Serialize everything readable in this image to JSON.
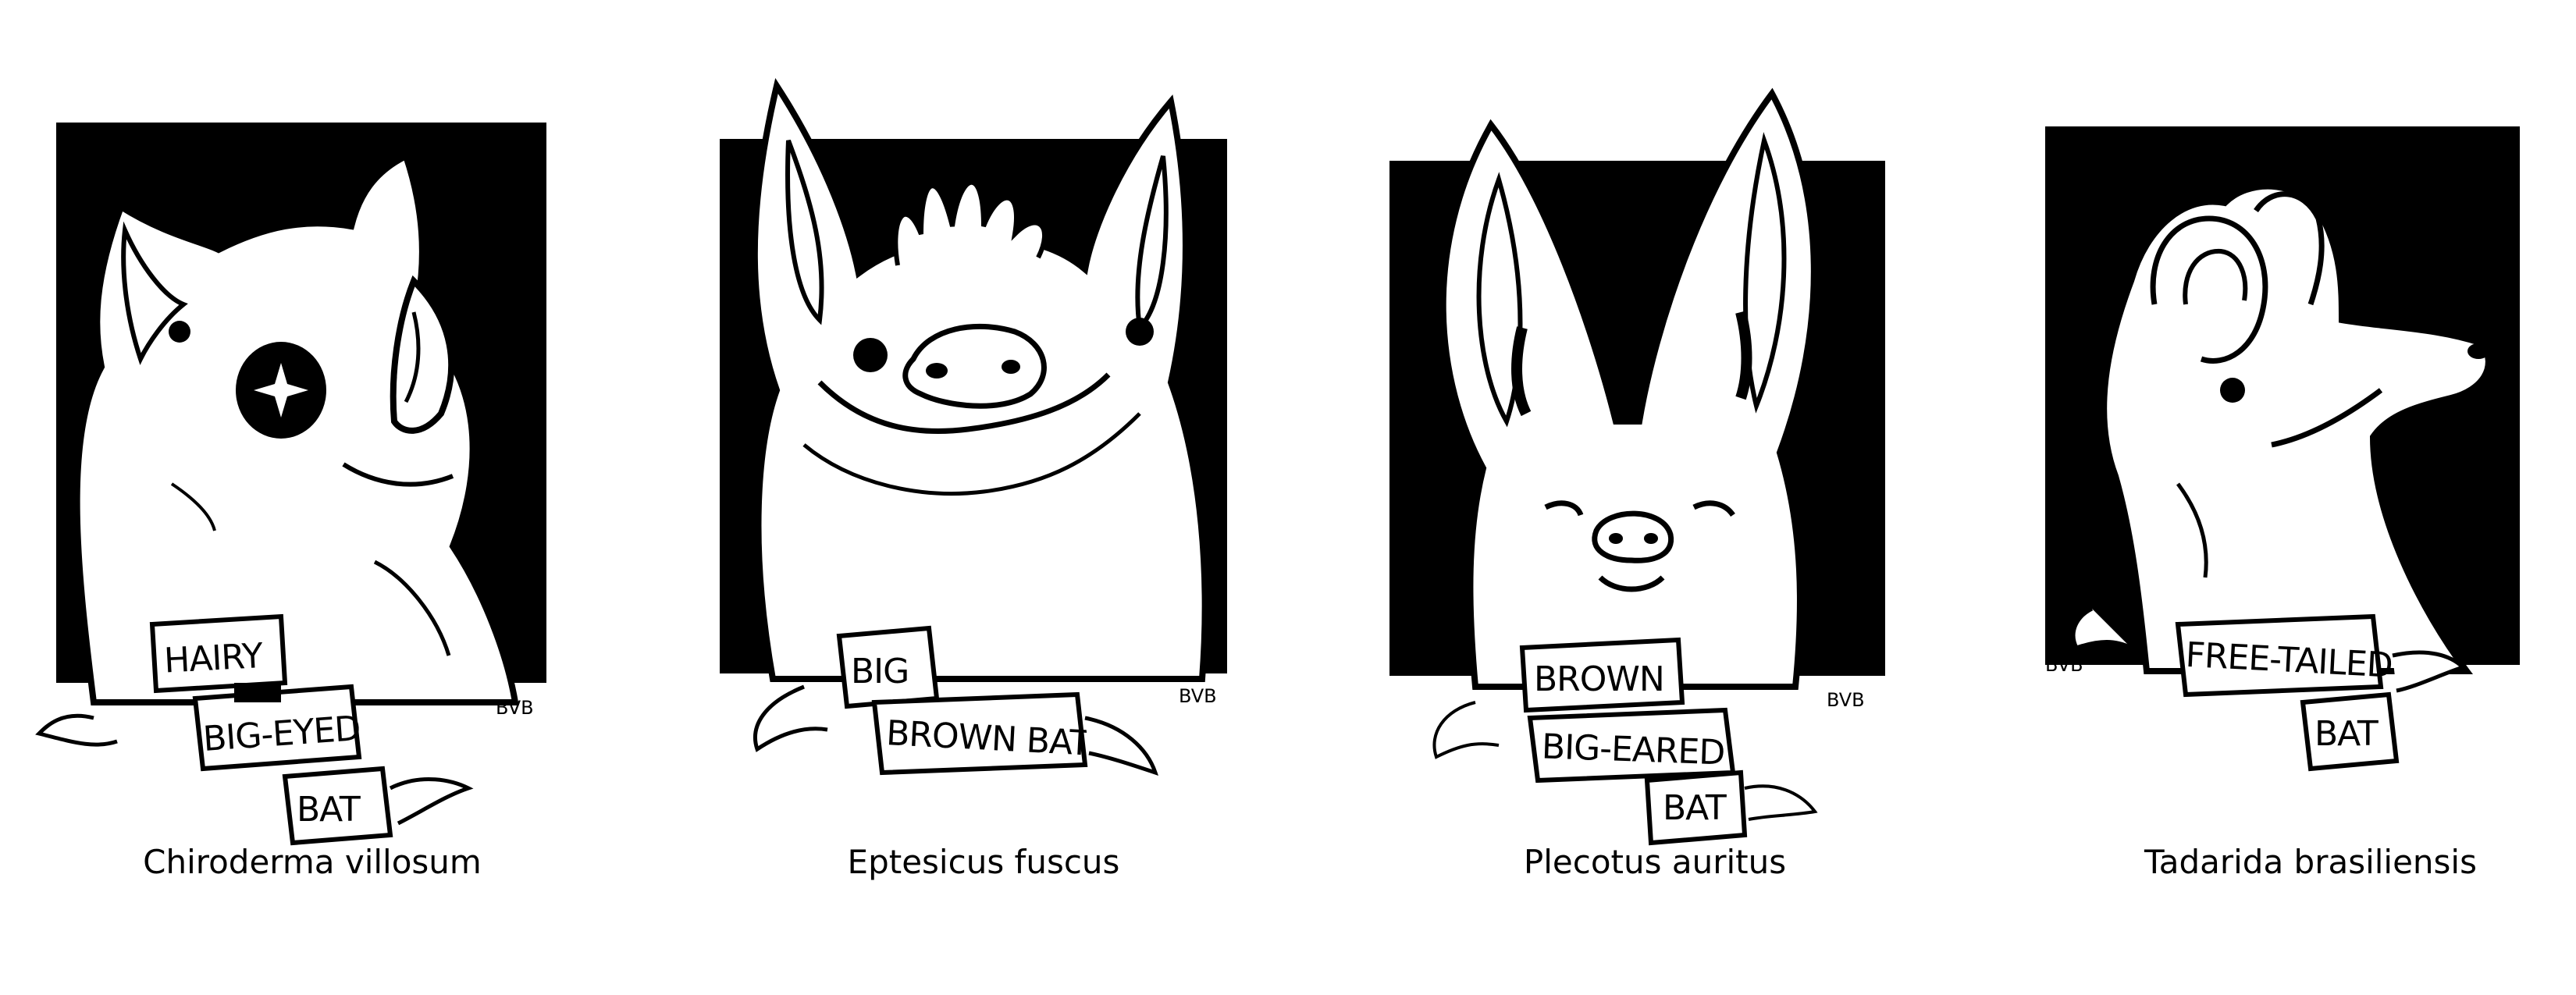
{
  "bats": [
    {
      "species": "Chiroderma villosum",
      "banner": [
        "HAIRY",
        "BIG-EYED",
        "BAT"
      ],
      "signature": "BVB"
    },
    {
      "species": "Eptesicus fuscus",
      "banner": [
        "BIG",
        "BROWN BAT"
      ],
      "signature": "BVB"
    },
    {
      "species": "Plecotus auritus",
      "banner": [
        "BROWN",
        "BIG-EARED",
        "BAT"
      ],
      "signature": "BVB"
    },
    {
      "species": "Tadarida brasiliensis",
      "banner": [
        "FREE-TAILED",
        "BAT"
      ],
      "signature": "BVB"
    }
  ],
  "colors": {
    "ink": "#000000",
    "paper": "#ffffff"
  }
}
